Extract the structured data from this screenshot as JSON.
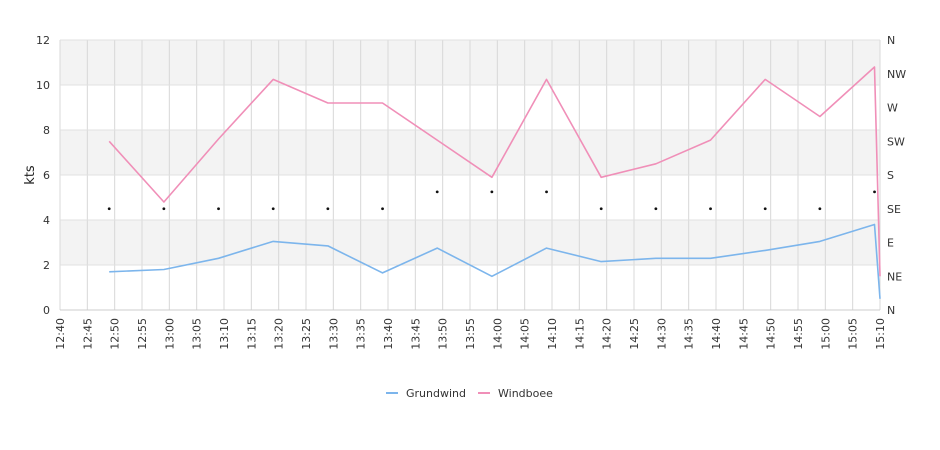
{
  "chart_data": {
    "type": "line",
    "ylabel": "kts",
    "ylim": [
      0,
      12
    ],
    "yticks": [
      0,
      2,
      4,
      6,
      8,
      10,
      12
    ],
    "y2_ticks": [
      "N",
      "NE",
      "E",
      "SE",
      "S",
      "SW",
      "W",
      "NW",
      "N"
    ],
    "x_ticks": [
      "12:40",
      "12:45",
      "12:50",
      "12:55",
      "13:00",
      "13:05",
      "13:10",
      "13:15",
      "13:20",
      "13:25",
      "13:30",
      "13:35",
      "13:40",
      "13:45",
      "13:50",
      "13:55",
      "14:00",
      "14:05",
      "14:10",
      "14:15",
      "14:20",
      "14:25",
      "14:30",
      "14:35",
      "14:40",
      "14:45",
      "14:50",
      "14:55",
      "15:00",
      "15:05",
      "15:10"
    ],
    "x": [
      "12:49",
      "12:59",
      "13:09",
      "13:19",
      "13:29",
      "13:39",
      "13:49",
      "13:59",
      "14:09",
      "14:19",
      "14:29",
      "14:39",
      "14:49",
      "14:59",
      "15:09",
      "15:10"
    ],
    "series": [
      {
        "name": "Grundwind",
        "color": "#7cb5ec",
        "values": [
          1.7,
          1.8,
          2.3,
          3.05,
          2.85,
          1.65,
          2.75,
          1.5,
          2.75,
          2.15,
          2.3,
          2.3,
          2.65,
          3.05,
          3.8,
          0.5
        ]
      },
      {
        "name": "Windboee",
        "color": "#f08fb8",
        "values": [
          7.5,
          4.8,
          7.6,
          10.25,
          9.2,
          9.2,
          7.55,
          5.9,
          10.25,
          5.9,
          6.5,
          7.55,
          10.25,
          8.6,
          10.8,
          1.5
        ]
      }
    ],
    "direction_markers": [
      {
        "x": "12:49",
        "dir": "SE"
      },
      {
        "x": "12:59",
        "dir": "SE"
      },
      {
        "x": "13:09",
        "dir": "SE"
      },
      {
        "x": "13:19",
        "dir": "SE"
      },
      {
        "x": "13:29",
        "dir": "SE"
      },
      {
        "x": "13:39",
        "dir": "SE"
      },
      {
        "x": "13:49",
        "dir": "S/SE"
      },
      {
        "x": "13:59",
        "dir": "S/SE"
      },
      {
        "x": "14:09",
        "dir": "S/SE"
      },
      {
        "x": "14:19",
        "dir": "SE"
      },
      {
        "x": "14:29",
        "dir": "SE"
      },
      {
        "x": "14:39",
        "dir": "SE"
      },
      {
        "x": "14:49",
        "dir": "SE"
      },
      {
        "x": "14:59",
        "dir": "SE"
      },
      {
        "x": "15:09",
        "dir": "S/SE"
      }
    ],
    "grid": true,
    "legend": "bottom-center"
  }
}
